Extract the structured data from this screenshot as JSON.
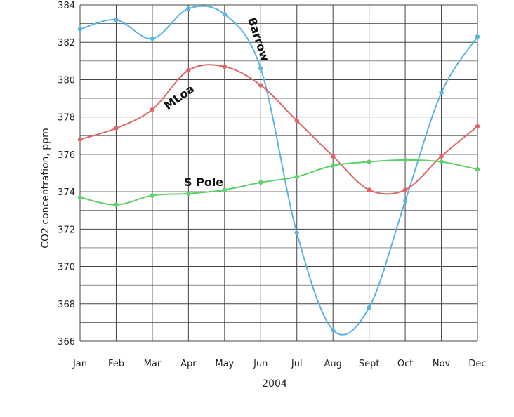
{
  "chart_data": {
    "type": "line",
    "title": "",
    "xlabel": "2004",
    "ylabel": "CO2 concentration, ppm",
    "categories": [
      "Jan",
      "Feb",
      "Mar",
      "Apr",
      "May",
      "Jun",
      "Jul",
      "Aug",
      "Sept",
      "Oct",
      "Nov",
      "Dec"
    ],
    "ylim": [
      366,
      384
    ],
    "yticks": [
      366,
      368,
      370,
      372,
      374,
      376,
      378,
      380,
      382,
      384
    ],
    "grid": true,
    "legend": "inline labels",
    "series": [
      {
        "name": "Barrow",
        "color": "#5ab4e5",
        "values": [
          382.7,
          383.2,
          382.2,
          383.8,
          383.5,
          380.6,
          371.8,
          366.6,
          367.8,
          373.5,
          379.3,
          382.3
        ]
      },
      {
        "name": "MLoa",
        "color": "#e06666",
        "values": [
          376.8,
          377.4,
          378.4,
          380.5,
          380.7,
          379.7,
          377.8,
          375.9,
          374.1,
          374.1,
          375.9,
          377.5
        ]
      },
      {
        "name": "S Pole",
        "color": "#5fd06a",
        "values": [
          373.7,
          373.3,
          373.8,
          373.9,
          374.1,
          374.5,
          374.8,
          375.4,
          375.6,
          375.7,
          375.6,
          375.2
        ]
      }
    ]
  }
}
